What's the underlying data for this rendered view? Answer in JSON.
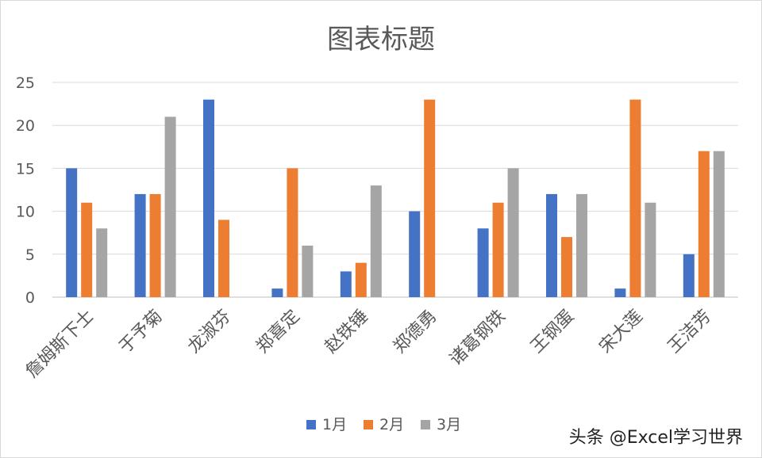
{
  "chart_data": {
    "type": "bar",
    "title": "图表标题",
    "xlabel": "",
    "ylabel": "",
    "ylim": [
      0,
      25
    ],
    "yticks": [
      0,
      5,
      10,
      15,
      20,
      25
    ],
    "grid": true,
    "legend_position": "bottom",
    "categories": [
      "詹姆斯下士",
      "于予菊",
      "龙淑芬",
      "郑喜定",
      "赵铁锤",
      "郑德勇",
      "诸葛钢铁",
      "王钢蛋",
      "宋大莲",
      "王洁芳"
    ],
    "series": [
      {
        "name": "1月",
        "color": "#4472c4",
        "values": [
          15,
          12,
          23,
          1,
          3,
          10,
          8,
          12,
          1,
          5
        ]
      },
      {
        "name": "2月",
        "color": "#ed7d31",
        "values": [
          11,
          12,
          9,
          15,
          4,
          23,
          11,
          7,
          23,
          17
        ]
      },
      {
        "name": "3月",
        "color": "#a5a5a5",
        "values": [
          8,
          21,
          0,
          6,
          13,
          0,
          15,
          12,
          11,
          17
        ]
      }
    ]
  },
  "watermark": "头条 @Excel学习世界"
}
